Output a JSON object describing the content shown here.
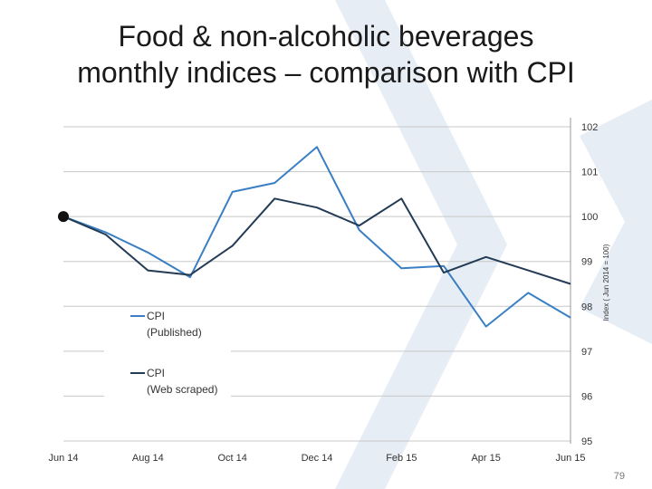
{
  "slide": {
    "title_line1": "Food & non-alcoholic beverages",
    "title_line2": "monthly indices – comparison with CPI",
    "page_number": "79"
  },
  "colors": {
    "published": "#3a7fc4",
    "web_scraped": "#243b55",
    "grid": "#c8c8c8",
    "watermark": "#e6edf5"
  },
  "chart_data": {
    "type": "line",
    "x": [
      "Jun 14",
      "Jul 14",
      "Aug 14",
      "Sep 14",
      "Oct 14",
      "Nov 14",
      "Dec 14",
      "Jan 15",
      "Feb 15",
      "Mar 15",
      "Apr 15",
      "May 15",
      "Jun 15"
    ],
    "x_tick_labels": [
      "Jun 14",
      "Aug 14",
      "Oct 14",
      "Dec 14",
      "Feb 15",
      "Apr 15",
      "Jun 15"
    ],
    "y_ticks": [
      "95",
      "96",
      "97",
      "98",
      "99",
      "100",
      "101",
      "102"
    ],
    "ylabel": "Index ( Jun 2014 = 100)",
    "ylim": [
      95,
      102
    ],
    "y_axis_position": "right",
    "grid": true,
    "legend_position": "left",
    "series": [
      {
        "name": "CPI\n(Published)",
        "legend_line1": "CPI",
        "legend_line2": "(Published)",
        "values": [
          100,
          99.65,
          99.2,
          98.65,
          100.55,
          100.75,
          101.55,
          99.7,
          98.85,
          98.9,
          97.55,
          98.3,
          97.75
        ]
      },
      {
        "name": "CPI\n(Web scraped)",
        "legend_line1": "CPI",
        "legend_line2": "(Web scraped)",
        "values": [
          100,
          99.6,
          98.8,
          98.7,
          99.35,
          100.4,
          100.2,
          99.8,
          100.4,
          98.75,
          99.1,
          98.8,
          98.5
        ]
      }
    ]
  }
}
